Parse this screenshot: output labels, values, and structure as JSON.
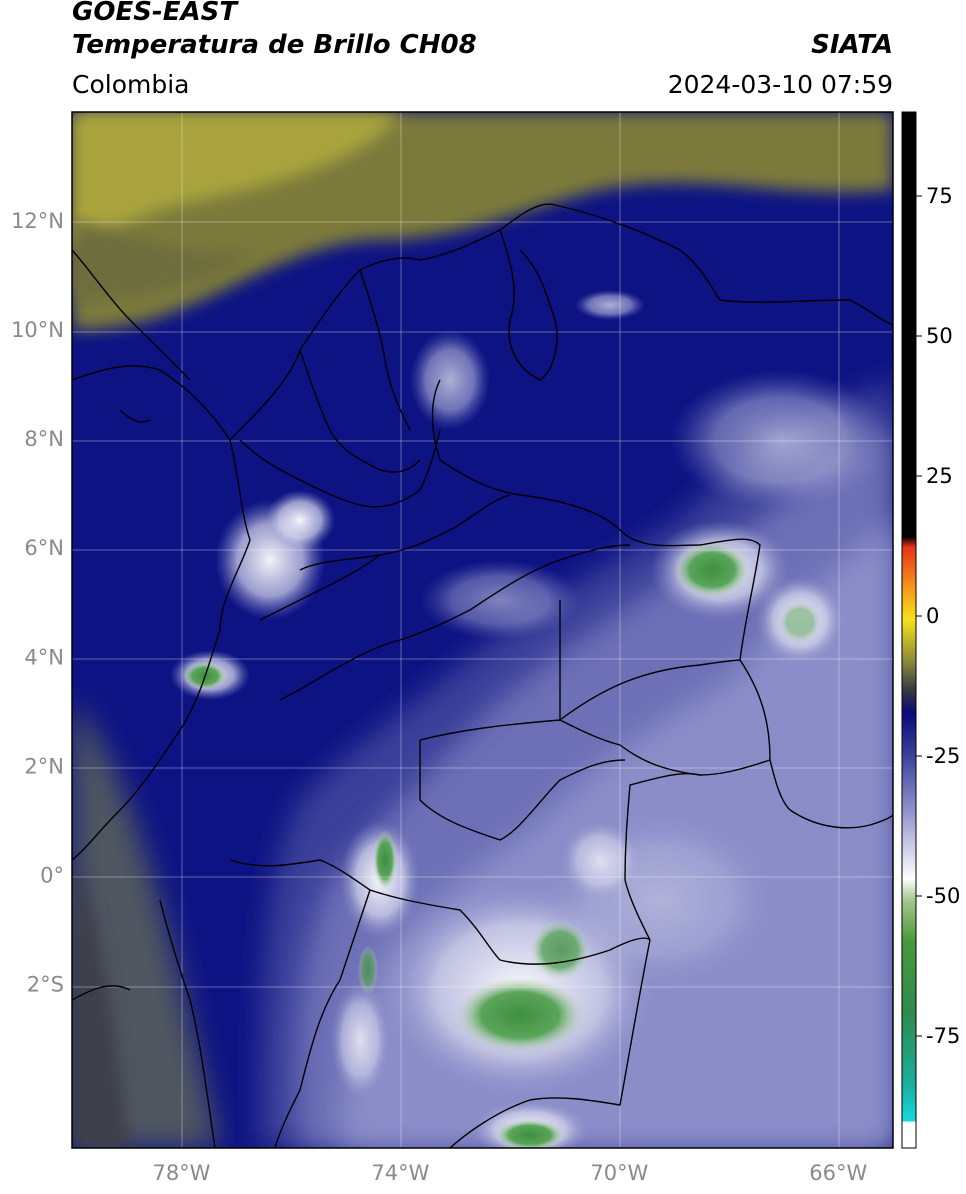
{
  "header": {
    "satellite": "GOES-EAST",
    "product": "Temperatura de Brillo CH08",
    "brand": "SIATA",
    "region": "Colombia",
    "datetime": "2024-03-10 07:59"
  },
  "map": {
    "lat_labels": [
      "12°N",
      "10°N",
      "8°N",
      "6°N",
      "4°N",
      "2°N",
      "0°",
      "2°S"
    ],
    "lon_labels": [
      "78°W",
      "74°W",
      "70°W",
      "66°W"
    ],
    "lat_values": [
      12,
      10,
      8,
      6,
      4,
      2,
      0,
      -2
    ],
    "lon_values": [
      -78,
      -74,
      -70,
      -66
    ],
    "extent": {
      "lon_min": -80,
      "lon_max": -65,
      "lat_min": -5,
      "lat_max": 14
    }
  },
  "colorbar": {
    "tick_labels": [
      "75",
      "50",
      "25",
      "0",
      "-25",
      "-50",
      "-75"
    ],
    "tick_values": [
      75,
      50,
      25,
      0,
      -25,
      -50,
      -75
    ],
    "range": [
      -95,
      90
    ],
    "colors": {
      "warm_black": "#000000",
      "red": "#e8321a",
      "orange": "#f59a1a",
      "yellow": "#f5e21a",
      "olive": "#8a8a3a",
      "navy": "#0a0a7a",
      "lavender": "#7f82c2",
      "white": "#ffffff",
      "green": "#3f9a3f",
      "teal": "#1ab0a0",
      "cyan": "#1ad8e0"
    }
  },
  "map_colors": {
    "olive_dry": "#9c9a3c",
    "dark_gray": "#555a60",
    "navy": "#0d1383",
    "mid_blue": "#3a3f9a",
    "lavender": "#8a8dc8",
    "white_cloud": "#e8e8f2",
    "green_core": "#4a9a4a"
  }
}
